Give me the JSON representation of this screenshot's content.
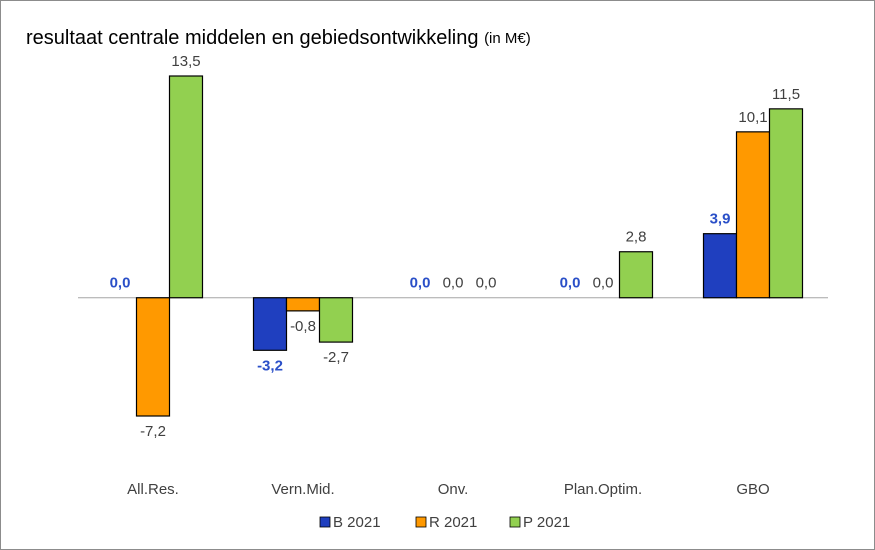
{
  "chart_data": {
    "type": "bar",
    "title": "resultaat centrale middelen en gebiedsontwikkeling",
    "title_unit": "(in M€)",
    "categories": [
      "All.Res.",
      "Vern.Mid.",
      "Onv.",
      "Plan.Optim.",
      "GBO"
    ],
    "series": [
      {
        "name": "B 2021",
        "color": "#1f3fbf",
        "label_color": "#2a4fc8",
        "label_bold": true,
        "values": [
          0.0,
          -3.2,
          0.0,
          0.0,
          3.9
        ],
        "value_labels": [
          "0,0",
          "-3,2",
          "0,0",
          "0,0",
          "3,9"
        ]
      },
      {
        "name": "R 2021",
        "color": "#ff9900",
        "label_color": "#404040",
        "label_bold": false,
        "values": [
          -7.2,
          -0.8,
          0.0,
          0.0,
          10.1
        ],
        "value_labels": [
          "-7,2",
          "-0,8",
          "0,0",
          "0,0",
          "10,1"
        ]
      },
      {
        "name": "P 2021",
        "color": "#92d050",
        "label_color": "#404040",
        "label_bold": false,
        "values": [
          13.5,
          -2.7,
          0.0,
          2.8,
          11.5
        ],
        "value_labels": [
          "13,5",
          "-2,7",
          "0,0",
          "2,8",
          "11,5"
        ]
      }
    ],
    "legend": "bottom"
  }
}
